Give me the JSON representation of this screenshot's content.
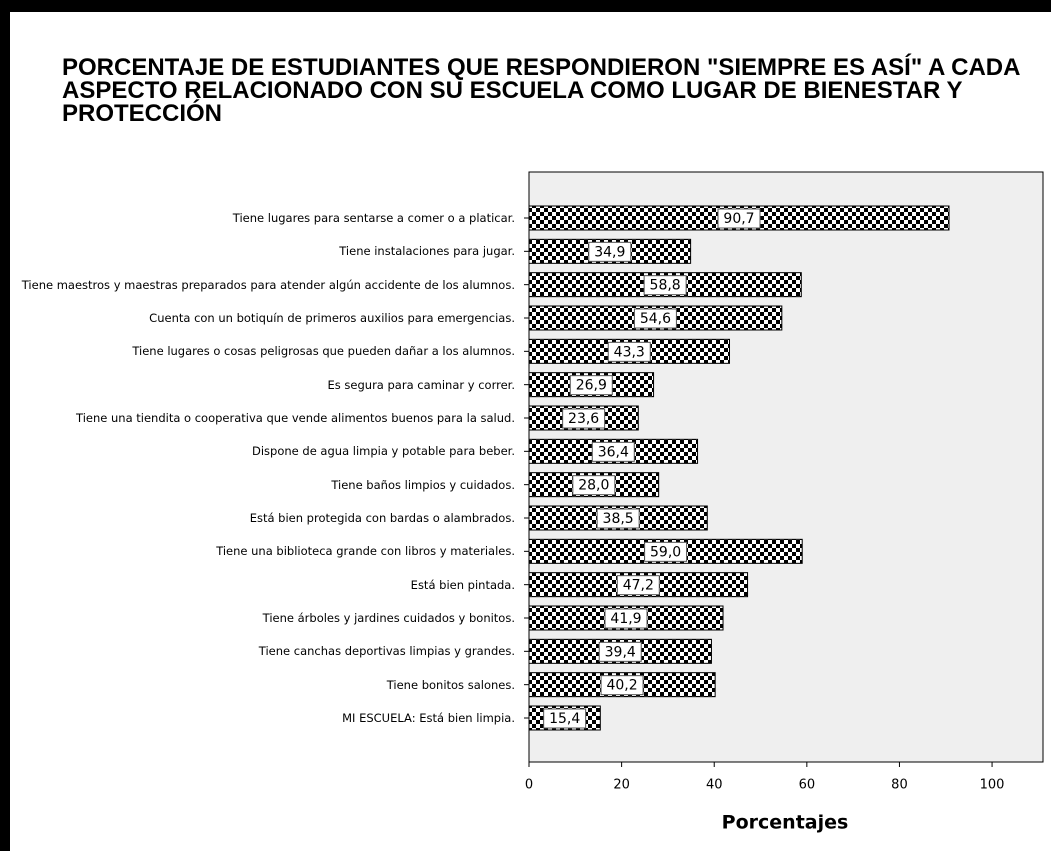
{
  "chart_data": {
    "type": "barh",
    "title": "PORCENTAJE DE ESTUDIANTES QUE RESPONDIERON \"SIEMPRE ES ASÍ\" A CADA ASPECTO RELACIONADO CON SU ESCUELA COMO LUGAR DE BIENESTAR Y PROTECCIÓN",
    "xlabel": "Porcentajes",
    "categories": [
      "Tiene lugares para sentarse a comer o a platicar.",
      "Tiene instalaciones para jugar.",
      "Tiene maestros y maestras preparados para atender algún accidente de los alumnos.",
      "Cuenta con un botiquín de primeros auxilios para emergencias.",
      "Tiene lugares o cosas peligrosas que pueden dañar a los alumnos.",
      "Es segura para caminar y correr.",
      "Tiene una tiendita o cooperativa que vende alimentos buenos para la salud.",
      "Dispone de agua limpia y potable para beber.",
      "Tiene baños limpios y cuidados.",
      "Está bien protegida con bardas o alambrados.",
      "Tiene una biblioteca grande con libros y materiales.",
      "Está bien pintada.",
      "Tiene árboles y jardines cuidados y bonitos.",
      "Tiene canchas deportivas limpias y grandes.",
      "Tiene bonitos salones.",
      "MI ESCUELA: Está bien limpia."
    ],
    "values": [
      90.7,
      34.9,
      58.8,
      54.6,
      43.3,
      26.9,
      23.6,
      36.4,
      28.0,
      38.5,
      59.0,
      47.2,
      41.9,
      39.4,
      40.2,
      15.4
    ],
    "value_labels": [
      "90,7",
      "34,9",
      "58,8",
      "54,6",
      "43,3",
      "26,9",
      "23,6",
      "36,4",
      "28,0",
      "38,5",
      "59,0",
      "47,2",
      "41,9",
      "39,4",
      "40,2",
      "15,4"
    ],
    "xlim": [
      0,
      111
    ],
    "xticks": [
      0,
      20,
      40,
      60,
      80,
      100
    ]
  }
}
